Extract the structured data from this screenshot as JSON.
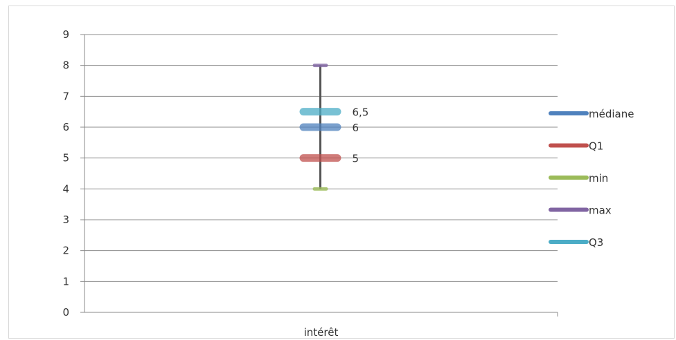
{
  "chart_data": {
    "type": "box",
    "categories": [
      "intérêt"
    ],
    "ylim": [
      0,
      9
    ],
    "yticks": [
      "0",
      "1",
      "2",
      "3",
      "4",
      "5",
      "6",
      "7",
      "8",
      "9"
    ],
    "grid": true,
    "legend_position": "right",
    "series": [
      {
        "name": "médiane",
        "values": [
          6
        ],
        "label": "6",
        "color": "#4f81bd"
      },
      {
        "name": "Q1",
        "values": [
          5
        ],
        "label": "5",
        "color": "#c0504d"
      },
      {
        "name": "min",
        "values": [
          4
        ],
        "label": "",
        "color": "#9bbb59"
      },
      {
        "name": "max",
        "values": [
          8
        ],
        "label": "",
        "color": "#8064a2"
      },
      {
        "name": "Q3",
        "values": [
          6.5
        ],
        "label": "6,5",
        "color": "#4bacc6"
      }
    ]
  }
}
